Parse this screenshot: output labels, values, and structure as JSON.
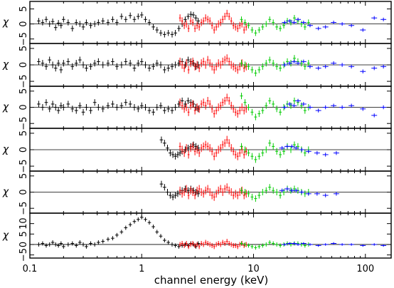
{
  "chart_data": {
    "type": "scatter",
    "xlabel": "channel energy (keV)",
    "x_scale": "log",
    "xlim": [
      0.1,
      170
    ],
    "x_ticks": [
      {
        "value": 0.1,
        "label": "0.1"
      },
      {
        "value": 1,
        "label": "1"
      },
      {
        "value": 10,
        "label": "10"
      },
      {
        "value": 100,
        "label": "100"
      }
    ],
    "instrument_colors": {
      "soft": "#000000",
      "mid": "#ff0000",
      "hard": "#00cc00",
      "highest": "#0000ff"
    },
    "panels": [
      {
        "ylabel": "χ",
        "ylim": [
          -6.5,
          7.5
        ],
        "y_ticks": [
          {
            "value": -5,
            "label": "−5"
          },
          {
            "value": 0,
            "label": "0"
          },
          {
            "value": 5,
            "label": "5"
          }
        ],
        "black_x": [
          0.12,
          0.13,
          0.14,
          0.15,
          0.16,
          0.17,
          0.18,
          0.19,
          0.2,
          0.22,
          0.24,
          0.26,
          0.28,
          0.3,
          0.32,
          0.35,
          0.38,
          0.41,
          0.45,
          0.5,
          0.55,
          0.6,
          0.66,
          0.72,
          0.79,
          0.86,
          0.93,
          1.0,
          1.08,
          1.17,
          1.27,
          1.37,
          1.48,
          1.6,
          1.73,
          1.87,
          2.0,
          2.15,
          2.3,
          2.45,
          2.6,
          2.75,
          2.9,
          3.05,
          3.2
        ],
        "black_y": [
          1.0,
          0.5,
          1.5,
          0.0,
          0.8,
          -1.2,
          0.3,
          -0.5,
          1.5,
          0.5,
          -1.5,
          0.5,
          0.0,
          -1.0,
          0.5,
          -0.5,
          0.0,
          0.5,
          1.0,
          0.5,
          1.5,
          0.5,
          2.5,
          1.5,
          2.8,
          1.5,
          2.5,
          3.0,
          1.5,
          0.5,
          -1.0,
          -2.0,
          -3.0,
          -3.5,
          -3.0,
          -3.5,
          -3.0,
          -1.5,
          0.0,
          1.5,
          2.5,
          3.2,
          3.0,
          2.0,
          1.0
        ],
        "red_y": [
          2.0,
          1.0,
          -0.5,
          0.0,
          -1.5,
          1.0,
          0.5,
          -1.5,
          -0.5,
          -1.0,
          0.5,
          1.0,
          2.0,
          1.5,
          1.0,
          -0.5,
          -2.0,
          -1.0,
          0.0,
          0.5,
          1.5,
          2.5,
          3.5,
          2.5,
          1.0,
          -0.5,
          -1.0,
          -1.5,
          -0.5,
          0.0,
          -2.0,
          -1.0
        ],
        "green_y": [
          1.5,
          0.5,
          -0.5,
          -2.0,
          -3.0,
          -2.0,
          -1.0,
          0.0,
          1.5,
          0.5,
          -1.0,
          -1.5,
          -0.5,
          1.0,
          0.5,
          2.0,
          1.0,
          0.0,
          -1.0,
          0.5
        ],
        "blue_x": [
          19,
          21,
          23,
          25,
          28,
          32,
          38,
          44,
          52,
          62,
          75,
          95,
          120,
          145
        ],
        "blue_y": [
          0.5,
          1.0,
          0.5,
          1.5,
          0.5,
          -0.5,
          -1.5,
          -1.0,
          0.5,
          0.0,
          -0.5,
          -2.0,
          2.0,
          1.5
        ]
      },
      {
        "ylabel": "χ",
        "ylim": [
          -6.5,
          6.5
        ],
        "y_ticks": [
          {
            "value": -5,
            "label": "−5"
          },
          {
            "value": 0,
            "label": "0"
          },
          {
            "value": 5,
            "label": "5"
          }
        ],
        "black_x": [
          0.12,
          0.13,
          0.14,
          0.15,
          0.16,
          0.17,
          0.18,
          0.19,
          0.2,
          0.22,
          0.24,
          0.26,
          0.28,
          0.3,
          0.32,
          0.35,
          0.38,
          0.41,
          0.45,
          0.5,
          0.55,
          0.6,
          0.66,
          0.72,
          0.79,
          0.86,
          0.93,
          1.0,
          1.08,
          1.17,
          1.27,
          1.37,
          1.48,
          1.6,
          1.73,
          1.87,
          2.0,
          2.15,
          2.3,
          2.45,
          2.6,
          2.75,
          2.9,
          3.05,
          3.2
        ],
        "black_y": [
          1.0,
          0.5,
          -0.5,
          1.5,
          0.0,
          -1.0,
          0.5,
          -1.5,
          0.5,
          1.0,
          -0.5,
          0.5,
          1.5,
          0.0,
          -1.0,
          -0.5,
          0.5,
          1.0,
          0.0,
          0.5,
          1.0,
          -0.5,
          0.0,
          1.0,
          0.5,
          -1.0,
          0.5,
          1.0,
          0.0,
          -1.0,
          -0.5,
          0.5,
          0.0,
          -1.5,
          -1.0,
          -0.5,
          0.0,
          0.5,
          1.0,
          0.0,
          1.5,
          1.0,
          0.5,
          -0.5,
          0.0
        ],
        "red_y": [
          1.0,
          0.0,
          -1.0,
          0.5,
          -1.5,
          0.5,
          1.0,
          -0.5,
          0.0,
          -1.0,
          0.5,
          1.0,
          0.0,
          1.5,
          0.5,
          -0.5,
          -1.5,
          -0.5,
          0.5,
          0.0,
          1.0,
          1.5,
          2.0,
          1.0,
          0.0,
          -0.5,
          -1.0,
          -1.5,
          -0.5,
          0.5,
          -1.0,
          -0.5
        ],
        "green_y": [
          0.5,
          0.0,
          -0.5,
          -1.5,
          -2.5,
          -1.5,
          -0.5,
          0.5,
          1.5,
          0.5,
          -0.5,
          -1.0,
          0.0,
          1.0,
          0.5,
          2.0,
          1.0,
          0.5,
          -0.5,
          0.5
        ],
        "blue_x": [
          19,
          21,
          23,
          25,
          28,
          32,
          38,
          44,
          52,
          62,
          75,
          95,
          120,
          145
        ],
        "blue_y": [
          0.0,
          0.5,
          1.0,
          0.5,
          1.0,
          -0.5,
          -1.0,
          -0.5,
          0.5,
          0.0,
          -0.5,
          -2.0,
          -1.0,
          -0.5
        ]
      },
      {
        "ylabel": "χ",
        "ylim": [
          -6.5,
          6.5
        ],
        "y_ticks": [
          {
            "value": -5,
            "label": "−5"
          },
          {
            "value": 0,
            "label": "0"
          },
          {
            "value": 5,
            "label": "5"
          }
        ],
        "black_x": [
          0.12,
          0.13,
          0.14,
          0.15,
          0.16,
          0.17,
          0.18,
          0.19,
          0.2,
          0.22,
          0.24,
          0.26,
          0.28,
          0.3,
          0.32,
          0.35,
          0.38,
          0.41,
          0.45,
          0.5,
          0.55,
          0.6,
          0.66,
          0.72,
          0.79,
          0.86,
          0.93,
          1.0,
          1.08,
          1.17,
          1.27,
          1.37,
          1.48,
          1.6,
          1.73,
          1.87,
          2.0,
          2.15,
          2.3,
          2.45,
          2.6,
          2.75,
          2.9,
          3.05,
          3.2
        ],
        "black_y": [
          1.0,
          0.0,
          1.5,
          -0.5,
          1.0,
          0.0,
          -1.0,
          0.5,
          0.0,
          1.0,
          -0.5,
          -1.0,
          0.5,
          -1.5,
          0.0,
          -1.0,
          1.5,
          0.0,
          -0.5,
          0.5,
          1.0,
          0.0,
          0.5,
          1.5,
          1.0,
          0.0,
          -0.5,
          0.5,
          0.0,
          -1.0,
          -1.5,
          0.0,
          0.5,
          -1.0,
          -0.5,
          -1.0,
          0.0,
          1.0,
          2.0,
          1.0,
          2.0,
          1.5,
          1.0,
          0.0,
          -0.5
        ],
        "red_y": [
          1.5,
          0.5,
          -0.5,
          0.0,
          -1.5,
          0.5,
          1.0,
          -1.0,
          0.0,
          -0.5,
          1.0,
          1.5,
          0.5,
          2.0,
          1.0,
          -0.5,
          -2.0,
          -1.0,
          0.0,
          0.5,
          1.5,
          2.0,
          3.0,
          2.0,
          0.5,
          -0.5,
          -1.5,
          -2.0,
          -1.0,
          0.0,
          -1.0,
          -0.5
        ],
        "green_y": [
          3.5,
          1.5,
          0.0,
          -1.5,
          -3.0,
          -2.0,
          -1.0,
          0.5,
          2.0,
          1.0,
          -0.5,
          -1.5,
          0.0,
          1.0,
          0.5,
          2.0,
          1.5,
          0.5,
          -1.0,
          0.0
        ],
        "blue_x": [
          19,
          21,
          23,
          25,
          28,
          32,
          38,
          44,
          52,
          62,
          75,
          95,
          120,
          145
        ],
        "blue_y": [
          0.0,
          1.0,
          0.5,
          2.0,
          1.0,
          0.0,
          -1.0,
          0.0,
          0.5,
          0.0,
          0.5,
          -0.5,
          -2.5,
          0.0
        ]
      },
      {
        "ylabel": "χ",
        "ylim": [
          -6.5,
          6.5
        ],
        "y_ticks": [
          {
            "value": -5,
            "label": "−5"
          },
          {
            "value": 0,
            "label": "0"
          },
          {
            "value": 5,
            "label": "5"
          }
        ],
        "black_x": [
          1.5,
          1.6,
          1.7,
          1.8,
          1.9,
          2.0,
          2.1,
          2.2,
          2.3,
          2.45,
          2.6,
          2.75,
          2.9,
          3.05,
          3.2
        ],
        "black_y": [
          3.0,
          2.0,
          0.5,
          -1.0,
          -1.5,
          -2.0,
          -1.5,
          -1.0,
          -0.5,
          0.0,
          0.5,
          1.0,
          1.5,
          1.0,
          0.5
        ],
        "red_y": [
          1.0,
          0.0,
          -1.0,
          0.5,
          -1.5,
          0.5,
          1.0,
          -0.5,
          0.0,
          -1.0,
          0.5,
          1.0,
          1.5,
          1.0,
          0.5,
          -0.5,
          -2.0,
          -1.0,
          0.0,
          0.5,
          1.5,
          2.0,
          3.0,
          2.0,
          0.5,
          -0.5,
          -1.5,
          -2.0,
          -1.0,
          0.0,
          -1.5,
          -0.5
        ],
        "green_y": [
          1.0,
          0.0,
          -1.0,
          -2.0,
          -3.0,
          -2.0,
          -1.0,
          0.0,
          2.0,
          1.0,
          -0.5,
          -1.5,
          -0.5,
          1.0,
          0.0,
          1.5,
          1.0,
          0.0,
          -1.0,
          0.0
        ],
        "blue_x": [
          18,
          20,
          22,
          24,
          27,
          31,
          37,
          44,
          55
        ],
        "blue_y": [
          0.5,
          1.0,
          1.0,
          0.5,
          0.0,
          -0.5,
          -1.0,
          -1.5,
          -1.0
        ]
      },
      {
        "ylabel": "χ",
        "ylim": [
          -6.5,
          6.5
        ],
        "y_ticks": [
          {
            "value": -5,
            "label": "−5"
          },
          {
            "value": 0,
            "label": "0"
          },
          {
            "value": 5,
            "label": "5"
          }
        ],
        "black_x": [
          1.5,
          1.6,
          1.7,
          1.8,
          1.9,
          2.0,
          2.1,
          2.2,
          2.3,
          2.45,
          2.6,
          2.75,
          2.9,
          3.05,
          3.2
        ],
        "black_y": [
          2.5,
          1.5,
          0.0,
          -1.0,
          -1.5,
          -1.0,
          -0.5,
          0.0,
          0.5,
          1.0,
          0.5,
          1.0,
          0.5,
          0.0,
          -0.5
        ],
        "red_y": [
          0.5,
          -0.5,
          0.0,
          1.0,
          -1.0,
          0.5,
          0.0,
          -1.0,
          0.5,
          1.0,
          0.0,
          -0.5,
          0.5,
          1.0,
          0.0,
          -1.0,
          -1.5,
          -0.5,
          0.5,
          1.0,
          0.0,
          1.0,
          1.5,
          0.5,
          0.0,
          -1.0,
          -0.5,
          -1.0,
          0.0,
          0.5,
          -1.0,
          -0.5
        ],
        "green_y": [
          0.5,
          0.0,
          -0.5,
          -1.5,
          -2.0,
          -1.0,
          0.0,
          0.5,
          1.5,
          0.5,
          0.0,
          -1.0,
          0.0,
          1.0,
          0.5,
          1.0,
          0.5,
          0.0,
          -0.5,
          0.0
        ],
        "blue_x": [
          18,
          20,
          22,
          24,
          27,
          31,
          37,
          44,
          55
        ],
        "blue_y": [
          0.5,
          1.0,
          0.5,
          0.5,
          0.0,
          -0.5,
          -0.5,
          -1.0,
          -0.5
        ]
      },
      {
        "ylabel": "χ",
        "ylim": [
          -6.5,
          15
        ],
        "y_ticks": [
          {
            "value": -5,
            "label": "−5"
          },
          {
            "value": 0,
            "label": "0"
          },
          {
            "value": 5,
            "label": "5"
          },
          {
            "value": 10,
            "label": "10"
          }
        ],
        "black_x": [
          0.12,
          0.13,
          0.14,
          0.15,
          0.16,
          0.17,
          0.18,
          0.19,
          0.2,
          0.22,
          0.24,
          0.26,
          0.28,
          0.3,
          0.32,
          0.35,
          0.38,
          0.41,
          0.45,
          0.5,
          0.55,
          0.6,
          0.66,
          0.72,
          0.79,
          0.86,
          0.93,
          1.0,
          1.08,
          1.17,
          1.27,
          1.37,
          1.48,
          1.6,
          1.73,
          1.87,
          2.0,
          2.15,
          2.3,
          2.45,
          2.6,
          2.75,
          2.9,
          3.05,
          3.2
        ],
        "black_y": [
          0.0,
          0.5,
          -0.5,
          0.0,
          1.0,
          0.0,
          -0.5,
          0.5,
          -1.0,
          0.0,
          0.5,
          -0.5,
          1.0,
          0.0,
          -1.0,
          0.5,
          0.0,
          1.0,
          1.5,
          2.5,
          3.0,
          4.5,
          6.0,
          8.0,
          9.5,
          11.0,
          12.0,
          13.0,
          12.0,
          10.5,
          8.5,
          6.0,
          4.0,
          2.0,
          1.0,
          0.0,
          -0.5,
          -1.0,
          -0.5,
          0.0,
          -0.5,
          0.5,
          0.0,
          -1.0,
          0.5
        ],
        "red_y": [
          0.0,
          0.5,
          -0.5,
          0.5,
          -1.0,
          0.0,
          0.5,
          -0.5,
          0.0,
          -1.0,
          0.5,
          0.0,
          1.0,
          0.5,
          0.0,
          -0.5,
          -1.0,
          0.0,
          0.5,
          0.0,
          1.0,
          0.5,
          1.5,
          0.5,
          0.0,
          -0.5,
          -0.5,
          -1.0,
          0.0,
          0.5,
          -0.5,
          0.0
        ],
        "green_y": [
          0.5,
          0.0,
          -0.5,
          -1.0,
          -1.5,
          -1.0,
          -0.5,
          0.0,
          1.0,
          0.5,
          0.0,
          -0.5,
          0.0,
          0.5,
          0.0,
          0.5,
          0.5,
          0.0,
          -0.5,
          0.0
        ],
        "blue_x": [
          19,
          21,
          23,
          25,
          28,
          32,
          38,
          44,
          52,
          62,
          75,
          95,
          120,
          145
        ],
        "blue_y": [
          0.0,
          0.5,
          0.5,
          0.0,
          0.5,
          0.0,
          -0.5,
          0.0,
          0.5,
          0.0,
          0.0,
          -0.5,
          0.0,
          -0.5
        ]
      }
    ]
  }
}
